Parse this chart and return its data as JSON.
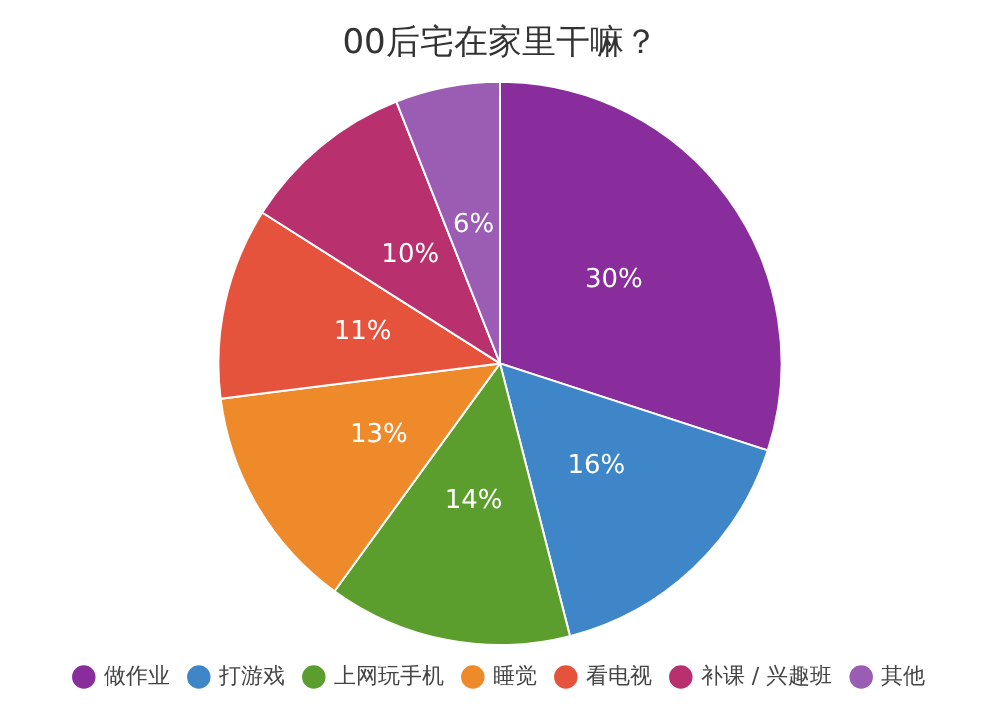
{
  "chart_data": {
    "type": "pie",
    "title": "00后宅在家里干嘛？",
    "categories": [
      "做作业",
      "打游戏",
      "上网玩手机",
      "睡觉",
      "看电视",
      "补课 / 兴趣班",
      "其他"
    ],
    "values": [
      30,
      16,
      14,
      13,
      11,
      10,
      6
    ],
    "value_labels": [
      "30%",
      "16%",
      "14%",
      "13%",
      "11%",
      "10%",
      "6%"
    ],
    "colors": [
      "#8a2d9c",
      "#3f86c9",
      "#5c9e2e",
      "#ee8a2a",
      "#e5533d",
      "#b8306e",
      "#9b5cb4"
    ],
    "legend": "bottom"
  }
}
